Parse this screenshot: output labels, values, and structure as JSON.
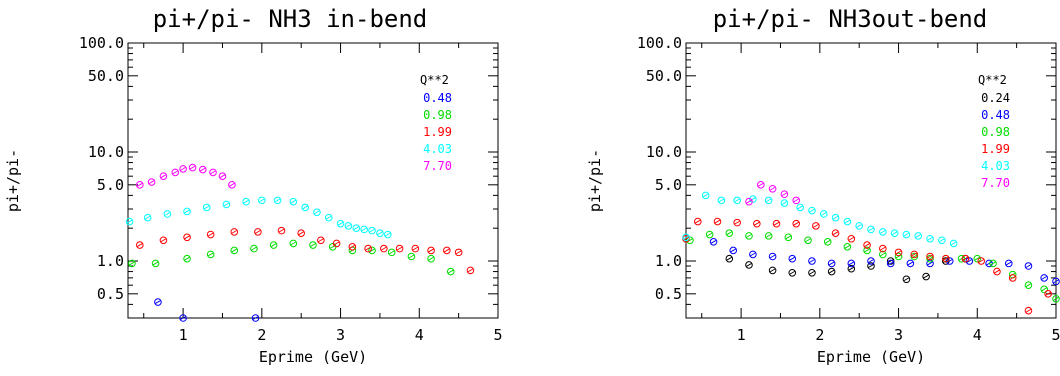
{
  "chart_data": [
    {
      "type": "scatter",
      "title": "pi+/pi- NH3 in-bend",
      "xlabel": "Eprime (GeV)",
      "ylabel": "pi+/pi-",
      "xlim": [
        0.3,
        5
      ],
      "ylim": [
        0.3,
        100
      ],
      "yscale": "log",
      "xticks": [
        "1",
        "2",
        "3",
        "4",
        "5"
      ],
      "yticks": [
        "100.0",
        "50.0",
        "10.0",
        "5.0",
        "1.0",
        "0.5"
      ],
      "yticks_values": [
        100,
        50,
        10,
        5,
        1,
        0.5
      ],
      "legend_title": "Q**2",
      "legend_position": "top-right",
      "series": [
        {
          "name": "0.48",
          "color": "#0000ff",
          "points": [
            [
              0.68,
              0.42
            ],
            [
              1.0,
              0.3
            ],
            [
              1.92,
              0.3
            ]
          ]
        },
        {
          "name": "0.98",
          "color": "#00dd00",
          "points": [
            [
              0.35,
              0.95
            ],
            [
              0.65,
              0.95
            ],
            [
              1.05,
              1.05
            ],
            [
              1.35,
              1.15
            ],
            [
              1.65,
              1.25
            ],
            [
              1.9,
              1.3
            ],
            [
              2.15,
              1.4
            ],
            [
              2.4,
              1.45
            ],
            [
              2.65,
              1.4
            ],
            [
              2.9,
              1.35
            ],
            [
              3.15,
              1.25
            ],
            [
              3.4,
              1.25
            ],
            [
              3.65,
              1.2
            ],
            [
              3.9,
              1.1
            ],
            [
              4.15,
              1.05
            ],
            [
              4.4,
              0.8
            ]
          ]
        },
        {
          "name": "1.99",
          "color": "#ff0000",
          "points": [
            [
              0.45,
              1.4
            ],
            [
              0.75,
              1.55
            ],
            [
              1.05,
              1.65
            ],
            [
              1.35,
              1.75
            ],
            [
              1.65,
              1.85
            ],
            [
              1.95,
              1.85
            ],
            [
              2.25,
              1.9
            ],
            [
              2.5,
              1.8
            ],
            [
              2.75,
              1.55
            ],
            [
              2.95,
              1.45
            ],
            [
              3.15,
              1.35
            ],
            [
              3.35,
              1.3
            ],
            [
              3.55,
              1.3
            ],
            [
              3.75,
              1.3
            ],
            [
              3.95,
              1.3
            ],
            [
              4.15,
              1.25
            ],
            [
              4.35,
              1.25
            ],
            [
              4.5,
              1.2
            ],
            [
              4.65,
              0.82
            ]
          ]
        },
        {
          "name": "4.03",
          "color": "#00ffff",
          "points": [
            [
              0.32,
              2.3
            ],
            [
              0.55,
              2.5
            ],
            [
              0.8,
              2.7
            ],
            [
              1.05,
              2.85
            ],
            [
              1.3,
              3.1
            ],
            [
              1.55,
              3.3
            ],
            [
              1.8,
              3.5
            ],
            [
              2.0,
              3.6
            ],
            [
              2.2,
              3.6
            ],
            [
              2.4,
              3.5
            ],
            [
              2.55,
              3.1
            ],
            [
              2.7,
              2.8
            ],
            [
              2.85,
              2.5
            ],
            [
              3.0,
              2.2
            ],
            [
              3.1,
              2.1
            ],
            [
              3.2,
              2.0
            ],
            [
              3.3,
              1.95
            ],
            [
              3.4,
              1.9
            ],
            [
              3.5,
              1.8
            ],
            [
              3.6,
              1.75
            ]
          ]
        },
        {
          "name": "7.70",
          "color": "#ff00ff",
          "points": [
            [
              0.45,
              5.0
            ],
            [
              0.6,
              5.3
            ],
            [
              0.75,
              6.0
            ],
            [
              0.9,
              6.5
            ],
            [
              1.0,
              7.0
            ],
            [
              1.12,
              7.2
            ],
            [
              1.25,
              6.9
            ],
            [
              1.38,
              6.5
            ],
            [
              1.5,
              6.0
            ],
            [
              1.62,
              5.0
            ]
          ]
        }
      ]
    },
    {
      "type": "scatter",
      "title": "pi+/pi- NH3out-bend",
      "xlabel": "Eprime (GeV)",
      "ylabel": "pi+/pi-",
      "xlim": [
        0.3,
        5
      ],
      "ylim": [
        0.3,
        100
      ],
      "yscale": "log",
      "xticks": [
        "1",
        "2",
        "3",
        "4",
        "5"
      ],
      "yticks": [
        "100.0",
        "50.0",
        "10.0",
        "5.0",
        "1.0",
        "0.5"
      ],
      "yticks_values": [
        100,
        50,
        10,
        5,
        1,
        0.5
      ],
      "legend_title": "Q**2",
      "legend_position": "top-right",
      "series": [
        {
          "name": "0.24",
          "color": "#000000",
          "points": [
            [
              0.85,
              1.05
            ],
            [
              1.1,
              0.92
            ],
            [
              1.4,
              0.82
            ],
            [
              1.65,
              0.78
            ],
            [
              1.9,
              0.78
            ],
            [
              2.15,
              0.8
            ],
            [
              2.4,
              0.85
            ],
            [
              2.65,
              0.9
            ],
            [
              2.9,
              1.0
            ],
            [
              3.1,
              0.68
            ],
            [
              3.35,
              0.72
            ],
            [
              3.6,
              1.0
            ],
            [
              3.85,
              1.05
            ]
          ]
        },
        {
          "name": "0.48",
          "color": "#0000ff",
          "points": [
            [
              0.65,
              1.5
            ],
            [
              0.9,
              1.25
            ],
            [
              1.15,
              1.15
            ],
            [
              1.4,
              1.1
            ],
            [
              1.65,
              1.05
            ],
            [
              1.9,
              1.0
            ],
            [
              2.15,
              0.95
            ],
            [
              2.4,
              0.95
            ],
            [
              2.65,
              1.0
            ],
            [
              2.9,
              0.95
            ],
            [
              3.15,
              0.95
            ],
            [
              3.4,
              0.95
            ],
            [
              3.65,
              1.0
            ],
            [
              3.9,
              1.0
            ],
            [
              4.15,
              0.95
            ],
            [
              4.4,
              0.95
            ],
            [
              4.65,
              0.9
            ],
            [
              4.85,
              0.7
            ],
            [
              5.0,
              0.65
            ]
          ]
        },
        {
          "name": "0.98",
          "color": "#00dd00",
          "points": [
            [
              0.35,
              1.55
            ],
            [
              0.6,
              1.75
            ],
            [
              0.85,
              1.8
            ],
            [
              1.1,
              1.7
            ],
            [
              1.35,
              1.7
            ],
            [
              1.6,
              1.65
            ],
            [
              1.85,
              1.55
            ],
            [
              2.1,
              1.5
            ],
            [
              2.35,
              1.35
            ],
            [
              2.6,
              1.25
            ],
            [
              2.8,
              1.15
            ],
            [
              3.0,
              1.1
            ],
            [
              3.2,
              1.1
            ],
            [
              3.4,
              1.05
            ],
            [
              3.6,
              1.05
            ],
            [
              3.8,
              1.05
            ],
            [
              4.0,
              1.05
            ],
            [
              4.2,
              0.95
            ],
            [
              4.45,
              0.75
            ],
            [
              4.65,
              0.6
            ],
            [
              4.85,
              0.55
            ],
            [
              5.0,
              0.45
            ]
          ]
        },
        {
          "name": "1.99",
          "color": "#ff0000",
          "points": [
            [
              0.3,
              1.6
            ],
            [
              0.45,
              2.3
            ],
            [
              0.7,
              2.3
            ],
            [
              0.95,
              2.25
            ],
            [
              1.2,
              2.2
            ],
            [
              1.45,
              2.2
            ],
            [
              1.7,
              2.2
            ],
            [
              1.95,
              2.1
            ],
            [
              2.2,
              1.8
            ],
            [
              2.4,
              1.6
            ],
            [
              2.6,
              1.4
            ],
            [
              2.8,
              1.3
            ],
            [
              3.0,
              1.2
            ],
            [
              3.2,
              1.15
            ],
            [
              3.4,
              1.1
            ],
            [
              3.6,
              1.05
            ],
            [
              3.85,
              1.05
            ],
            [
              4.05,
              1.0
            ],
            [
              4.25,
              0.8
            ],
            [
              4.45,
              0.7
            ],
            [
              4.65,
              0.35
            ],
            [
              4.9,
              0.5
            ]
          ]
        },
        {
          "name": "4.03",
          "color": "#00ffff",
          "points": [
            [
              0.3,
              1.65
            ],
            [
              0.55,
              4.0
            ],
            [
              0.75,
              3.6
            ],
            [
              0.95,
              3.6
            ],
            [
              1.15,
              3.7
            ],
            [
              1.35,
              3.6
            ],
            [
              1.55,
              3.4
            ],
            [
              1.75,
              3.1
            ],
            [
              1.9,
              2.9
            ],
            [
              2.05,
              2.7
            ],
            [
              2.2,
              2.5
            ],
            [
              2.35,
              2.3
            ],
            [
              2.5,
              2.1
            ],
            [
              2.65,
              1.95
            ],
            [
              2.8,
              1.85
            ],
            [
              2.95,
              1.8
            ],
            [
              3.1,
              1.75
            ],
            [
              3.25,
              1.7
            ],
            [
              3.4,
              1.6
            ],
            [
              3.55,
              1.55
            ],
            [
              3.7,
              1.45
            ]
          ]
        },
        {
          "name": "7.70",
          "color": "#ff00ff",
          "points": [
            [
              1.1,
              3.5
            ],
            [
              1.25,
              5.0
            ],
            [
              1.4,
              4.6
            ],
            [
              1.55,
              4.1
            ],
            [
              1.7,
              3.6
            ]
          ]
        }
      ]
    }
  ]
}
